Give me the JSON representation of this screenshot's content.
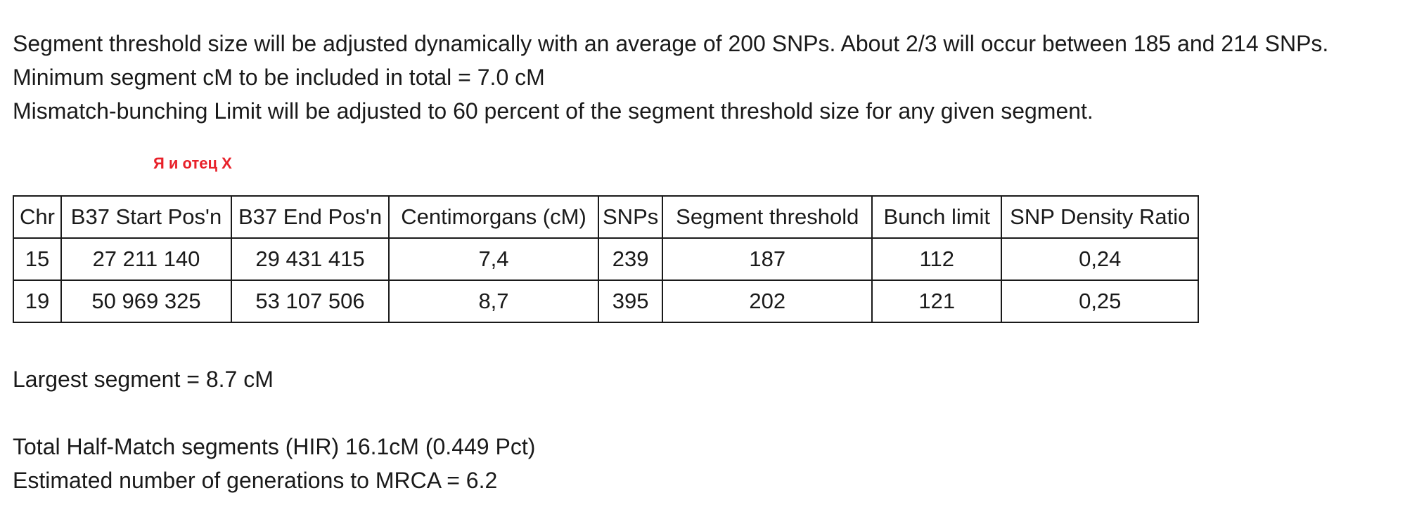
{
  "intro": {
    "line1": "Segment threshold size will be adjusted dynamically with an average of 200 SNPs. About 2/3 will occur between 185 and 214 SNPs.",
    "line2": "Minimum segment cM to be included in total = 7.0 cM",
    "line3": "Mismatch-bunching Limit will be adjusted to 60 percent of the segment threshold size for any given segment."
  },
  "caption": "Я и отец X",
  "table": {
    "headers": [
      "Chr",
      "B37 Start Pos'n",
      "B37 End Pos'n",
      "Centimorgans (cM)",
      "SNPs",
      "Segment threshold",
      "Bunch limit",
      "SNP Density Ratio"
    ],
    "rows": [
      [
        "15",
        "27 211 140",
        "29 431 415",
        "7,4",
        "239",
        "187",
        "112",
        "0,24"
      ],
      [
        "19",
        "50 969 325",
        "53 107 506",
        "8,7",
        "395",
        "202",
        "121",
        "0,25"
      ]
    ]
  },
  "summary": {
    "largest": "Largest segment = 8.7 cM",
    "total": "Total Half-Match segments (HIR) 16.1cM (0.449 Pct)",
    "generations": "Estimated number of generations to MRCA = 6.2"
  }
}
